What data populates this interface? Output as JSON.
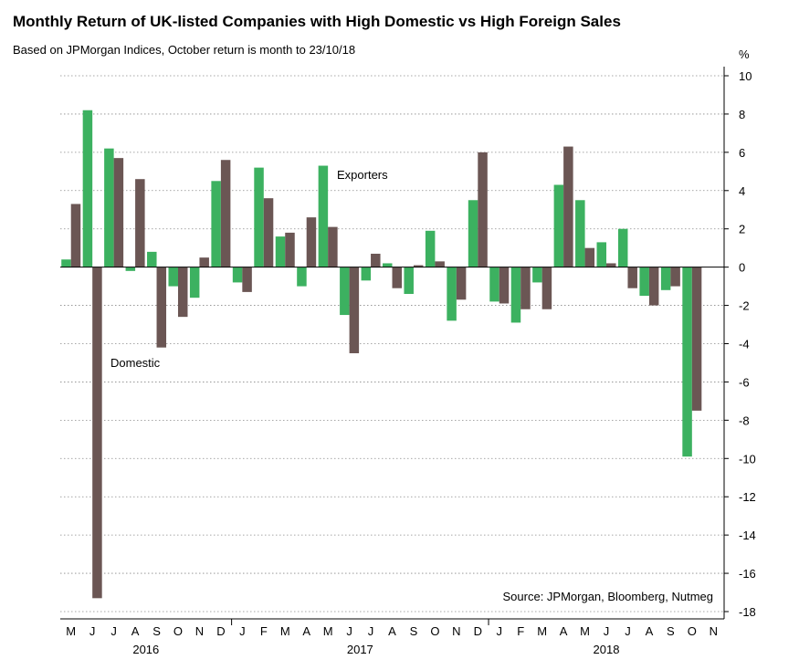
{
  "chart_data": {
    "type": "bar",
    "title": "Monthly Return of UK-listed Companies with High Domestic vs High Foreign Sales",
    "subtitle": "Based on JPMorgan Indices, October return is month to 23/10/18",
    "ylabel": "%",
    "ylim": [
      -18,
      10
    ],
    "yticks": [
      10,
      8,
      6,
      4,
      2,
      0,
      -2,
      -4,
      -6,
      -8,
      -10,
      -12,
      -14,
      -16,
      -18
    ],
    "grid": true,
    "categories": [
      "M",
      "J",
      "J",
      "A",
      "S",
      "O",
      "N",
      "D",
      "J",
      "F",
      "M",
      "A",
      "M",
      "J",
      "J",
      "A",
      "S",
      "O",
      "N",
      "D",
      "J",
      "F",
      "M",
      "A",
      "M",
      "J",
      "J",
      "A",
      "S",
      "O",
      "N"
    ],
    "year_labels": [
      {
        "label": "2016",
        "start_index": 0
      },
      {
        "label": "2017",
        "start_index": 8
      },
      {
        "label": "2018",
        "start_index": 20
      }
    ],
    "series": [
      {
        "name": "Exporters",
        "color": "#3cb160",
        "values": [
          0.4,
          8.2,
          6.2,
          -0.2,
          0.8,
          -1.0,
          -1.6,
          4.5,
          -0.8,
          5.2,
          1.6,
          -1.0,
          5.3,
          -2.5,
          -0.7,
          0.2,
          -1.4,
          1.9,
          -2.8,
          3.5,
          -1.8,
          -2.9,
          -0.8,
          4.3,
          3.5,
          1.3,
          2.0,
          -1.5,
          -1.2,
          -9.9,
          null
        ]
      },
      {
        "name": "Domestic",
        "color": "#6b5654",
        "values": [
          3.3,
          -17.3,
          5.7,
          4.6,
          -4.2,
          -2.6,
          0.5,
          5.6,
          -1.3,
          3.6,
          1.8,
          2.6,
          2.1,
          -4.5,
          0.7,
          -1.1,
          0.1,
          0.3,
          -1.7,
          6.0,
          -1.9,
          -2.2,
          -2.2,
          6.3,
          1.0,
          0.2,
          -1.1,
          -2.0,
          -1.0,
          -7.5,
          null
        ]
      }
    ],
    "annotations": [
      {
        "text": "Exporters",
        "anchor_series": "Exporters"
      },
      {
        "text": "Domestic",
        "anchor_series": "Domestic"
      }
    ],
    "source": "Source: JPMorgan, Bloomberg, Nutmeg"
  }
}
